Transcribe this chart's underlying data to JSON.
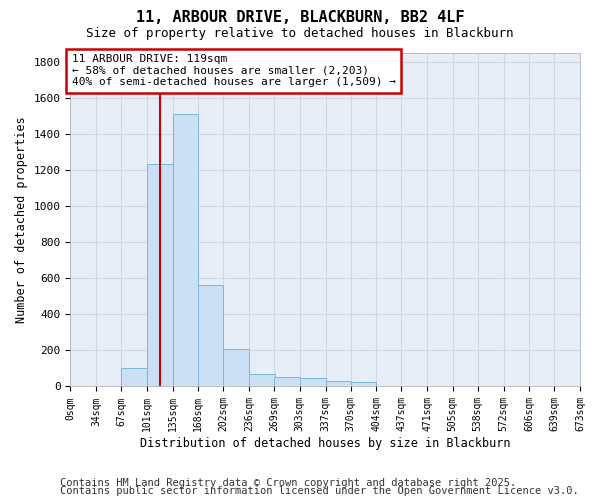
{
  "title": "11, ARBOUR DRIVE, BLACKBURN, BB2 4LF",
  "subtitle": "Size of property relative to detached houses in Blackburn",
  "xlabel": "Distribution of detached houses by size in Blackburn",
  "ylabel": "Number of detached properties",
  "bar_color": "#cce0f5",
  "bar_edge_color": "#7ab8d9",
  "red_line_x": 119,
  "annotation_text": "11 ARBOUR DRIVE: 119sqm\n← 58% of detached houses are smaller (2,203)\n40% of semi-detached houses are larger (1,509) →",
  "annotation_box_color": "#ffffff",
  "annotation_border_color": "#cc0000",
  "vline_color": "#cc0000",
  "bin_edges": [
    0,
    34,
    67,
    101,
    135,
    168,
    202,
    236,
    269,
    303,
    337,
    370,
    404,
    437,
    471,
    505,
    538,
    572,
    606,
    639,
    673
  ],
  "bar_heights": [
    0,
    0,
    100,
    1230,
    1510,
    560,
    210,
    70,
    50,
    45,
    30,
    25,
    5,
    5,
    3,
    2,
    1,
    1,
    0,
    0
  ],
  "ylim": [
    0,
    1850
  ],
  "yticks": [
    0,
    200,
    400,
    600,
    800,
    1000,
    1200,
    1400,
    1600,
    1800
  ],
  "grid_color": "#d0d8e8",
  "background_color": "#e8eef8",
  "footnote1": "Contains HM Land Registry data © Crown copyright and database right 2025.",
  "footnote2": "Contains public sector information licensed under the Open Government Licence v3.0.",
  "title_fontsize": 11,
  "subtitle_fontsize": 9,
  "footnote_fontsize": 7.5
}
